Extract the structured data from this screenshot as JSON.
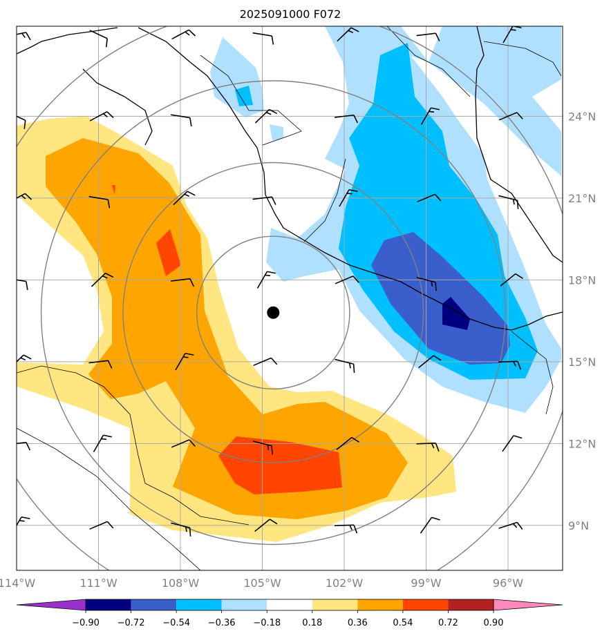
{
  "title": "2025091000 F072",
  "map": {
    "lon_range": [
      -114.0,
      -94.0
    ],
    "lat_range": [
      7.0,
      27.3
    ],
    "lat_ticks": [
      {
        "value": 9,
        "label": "9°N"
      },
      {
        "value": 12,
        "label": "12°N"
      },
      {
        "value": 15,
        "label": "15°N"
      },
      {
        "value": 18,
        "label": "18°N"
      },
      {
        "value": 21,
        "label": "21°N"
      },
      {
        "value": 24,
        "label": "24°N"
      }
    ],
    "lon_ticks": [
      {
        "value": -114,
        "label": "114°W"
      },
      {
        "value": -111,
        "label": "111°W"
      },
      {
        "value": -108,
        "label": "108°W"
      },
      {
        "value": -105,
        "label": "105°W"
      },
      {
        "value": -102,
        "label": "102°W"
      },
      {
        "value": -99,
        "label": "99°W"
      },
      {
        "value": -96,
        "label": "96°W"
      }
    ],
    "grid": true,
    "storm_center": {
      "lon": -104.6,
      "lat": 16.8
    },
    "range_rings": {
      "center": {
        "lon": -104.6,
        "lat": 16.8
      },
      "radii_deg": [
        2.8,
        5.5,
        8.5,
        11.2
      ]
    },
    "colors": {
      "coast": "#000000",
      "border": "#000000",
      "grid": "#a8a8a8",
      "ring": "#808080"
    }
  },
  "colorbar": {
    "levels": [
      "−0.90",
      "−0.72",
      "−0.54",
      "−0.36",
      "−0.18",
      "0.18",
      "0.36",
      "0.54",
      "0.72",
      "0.90"
    ],
    "colors": [
      "#9932cc",
      "#000080",
      "#3a5fcd",
      "#00bfff",
      "#b0e0ff",
      "#ffffff",
      "#ffe680",
      "#ffa500",
      "#ff4500",
      "#b22222",
      "#ff88bb"
    ]
  },
  "wind_barbs": {
    "lons": [
      -114,
      -111,
      -108,
      -105,
      -102,
      -99,
      -96
    ],
    "lats": [
      9,
      12,
      15,
      18,
      21,
      24,
      27
    ]
  }
}
